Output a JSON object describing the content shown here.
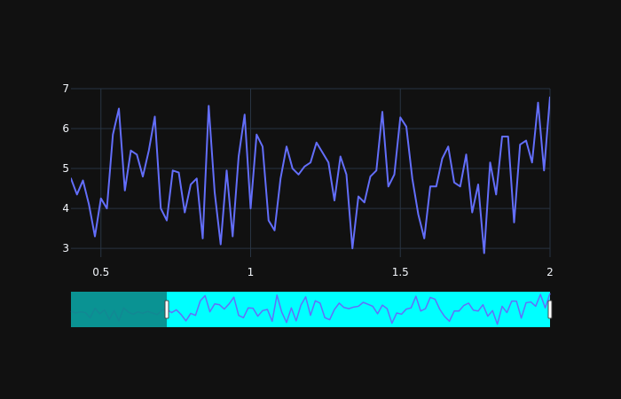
{
  "chart_data": {
    "type": "line",
    "title": "",
    "xlabel": "",
    "ylabel": "",
    "xlim": [
      0.4,
      2.0
    ],
    "ylim": [
      2.78,
      7.0
    ],
    "x_ticks": [
      0.5,
      1,
      1.5,
      2
    ],
    "x_tick_labels": [
      "0.5",
      "1",
      "1.5",
      "2"
    ],
    "y_ticks": [
      3,
      4,
      5,
      6,
      7
    ],
    "y_tick_labels": [
      "3",
      "4",
      "5",
      "6",
      "7"
    ],
    "grid": true,
    "x_start": 0.0,
    "x_step": 0.02,
    "range_selector": {
      "full_range": [
        0.0,
        2.0
      ],
      "selected": [
        0.4,
        2.0
      ]
    },
    "colors": {
      "background": "#111111",
      "grid": "#283442",
      "line": "#636efa",
      "slider_fill": "#00ffff",
      "slider_mask": "#0b8a8a",
      "tick_text": "#f2f5fa"
    },
    "series": [
      {
        "values": [
          4.55,
          4.3,
          4.45,
          4.35,
          3.7,
          4.9,
          4.2,
          4.7,
          3.5,
          4.6,
          3.3,
          4.95,
          4.4,
          4.15,
          4.45,
          4.25,
          4.5,
          4.3,
          4.1,
          4.65,
          4.75,
          4.35,
          4.7,
          4.1,
          3.3,
          4.25,
          4.0,
          5.85,
          6.5,
          4.45,
          5.45,
          5.35,
          4.8,
          5.45,
          6.3,
          4.0,
          3.7,
          4.95,
          4.9,
          3.9,
          4.6,
          4.75,
          3.25,
          6.57,
          4.4,
          3.1,
          4.95,
          3.3,
          5.3,
          6.35,
          4.0,
          5.85,
          5.55,
          3.7,
          3.45,
          4.75,
          5.55,
          5.0,
          4.85,
          5.05,
          5.15,
          5.65,
          5.4,
          5.15,
          4.2,
          5.3,
          4.85,
          3.0,
          4.3,
          4.15,
          4.8,
          4.95,
          6.42,
          4.55,
          4.85,
          6.28,
          6.05,
          4.75,
          3.85,
          3.25,
          4.55,
          4.55,
          5.25,
          5.55,
          4.65,
          4.55,
          5.35,
          3.9,
          4.6,
          2.88,
          5.15,
          4.35,
          5.8,
          5.8,
          3.65,
          5.6,
          5.7,
          5.15,
          6.65,
          4.95,
          6.8
        ]
      }
    ]
  }
}
